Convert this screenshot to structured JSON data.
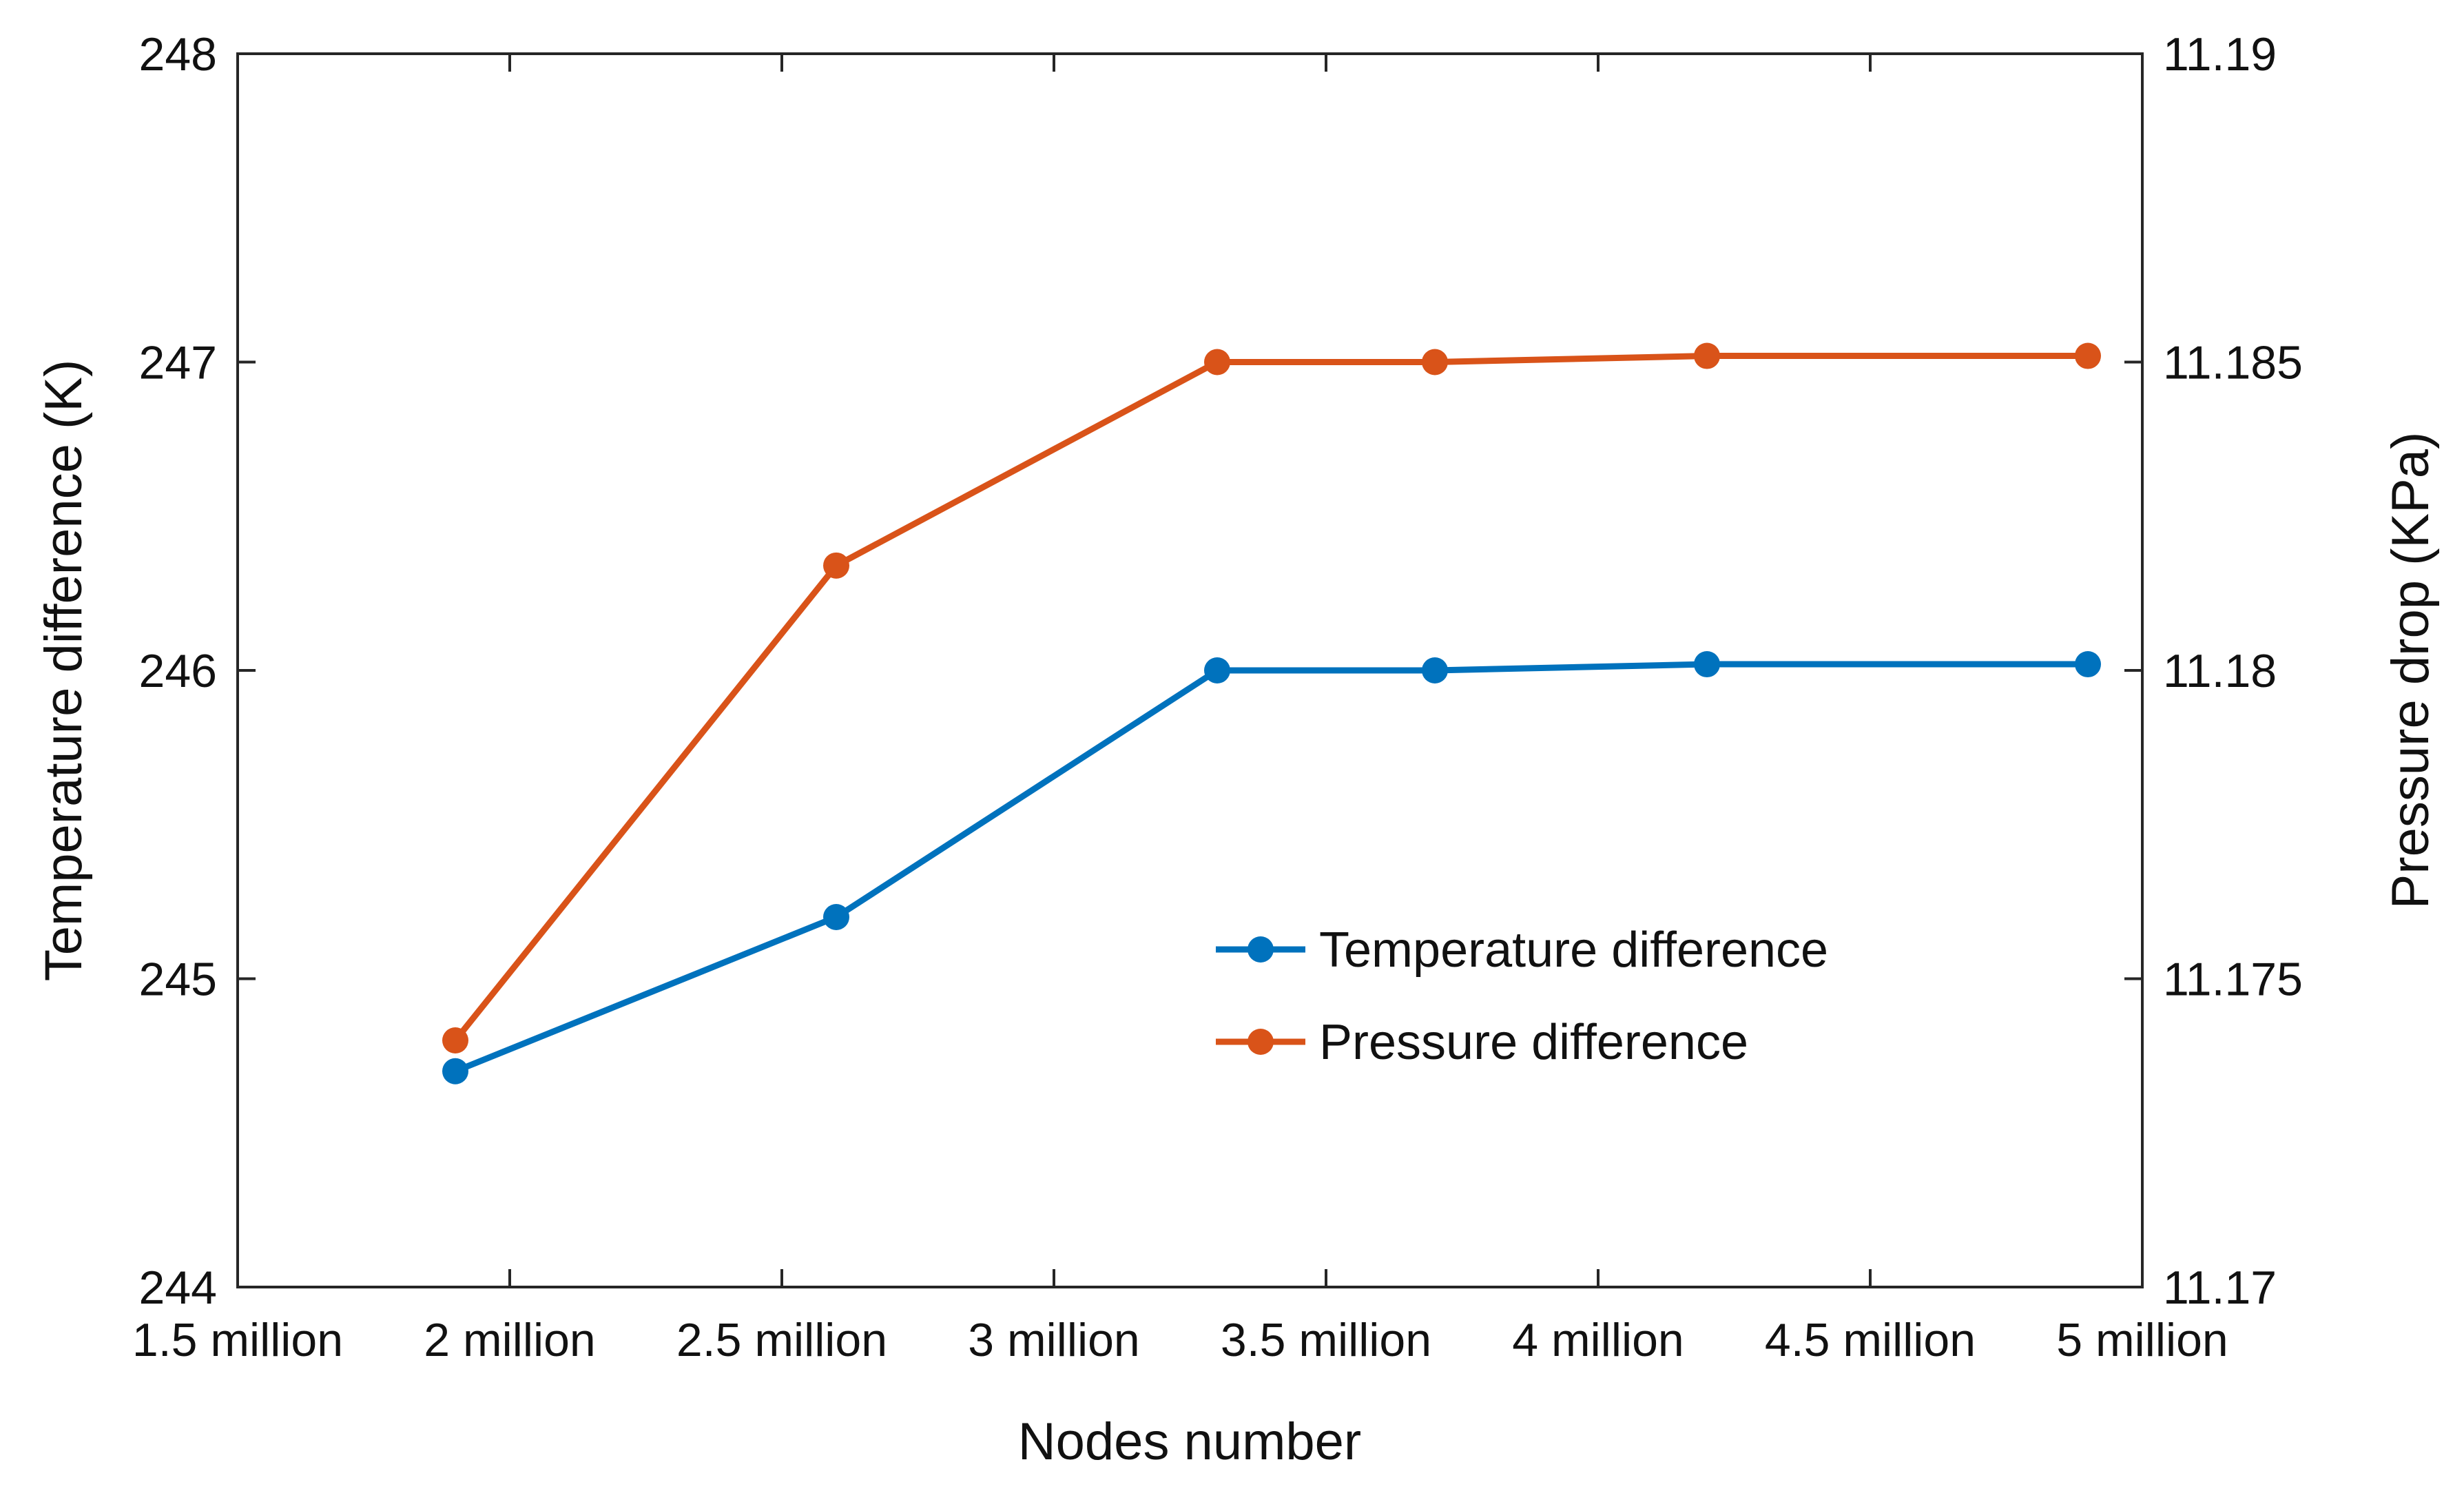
{
  "chart_data": {
    "type": "line",
    "title": "",
    "xlabel": "Nodes number",
    "ylabel_left": "Temperature difference (K)",
    "ylabel_right": "Pressure drop (KPa)",
    "x_ticks": [
      "1.5 million",
      "2 million",
      "2.5 million",
      "3 million",
      "3.5 million",
      "4 million",
      "4.5 million",
      "5 million"
    ],
    "x_range": [
      1.5,
      5.0
    ],
    "ylim_left": [
      244,
      248
    ],
    "yticks_left": [
      "244",
      "245",
      "246",
      "247",
      "248"
    ],
    "ylim_right": [
      11.17,
      11.19
    ],
    "yticks_right": [
      "11.17",
      "11.175",
      "11.18",
      "11.185",
      "11.19"
    ],
    "legend_position": "center-right",
    "series": [
      {
        "name": "Temperature difference",
        "axis": "left",
        "color": "#0072BD",
        "x": [
          1.9,
          2.6,
          3.3,
          3.7,
          4.2,
          4.9
        ],
        "values": [
          244.7,
          245.2,
          246.0,
          246.0,
          246.02,
          246.02
        ]
      },
      {
        "name": "Pressure difference",
        "axis": "right",
        "color": "#D95319",
        "x": [
          1.9,
          2.6,
          3.3,
          3.7,
          4.2,
          4.9
        ],
        "values": [
          11.174,
          11.1817,
          11.185,
          11.185,
          11.1851,
          11.1851
        ]
      }
    ]
  }
}
